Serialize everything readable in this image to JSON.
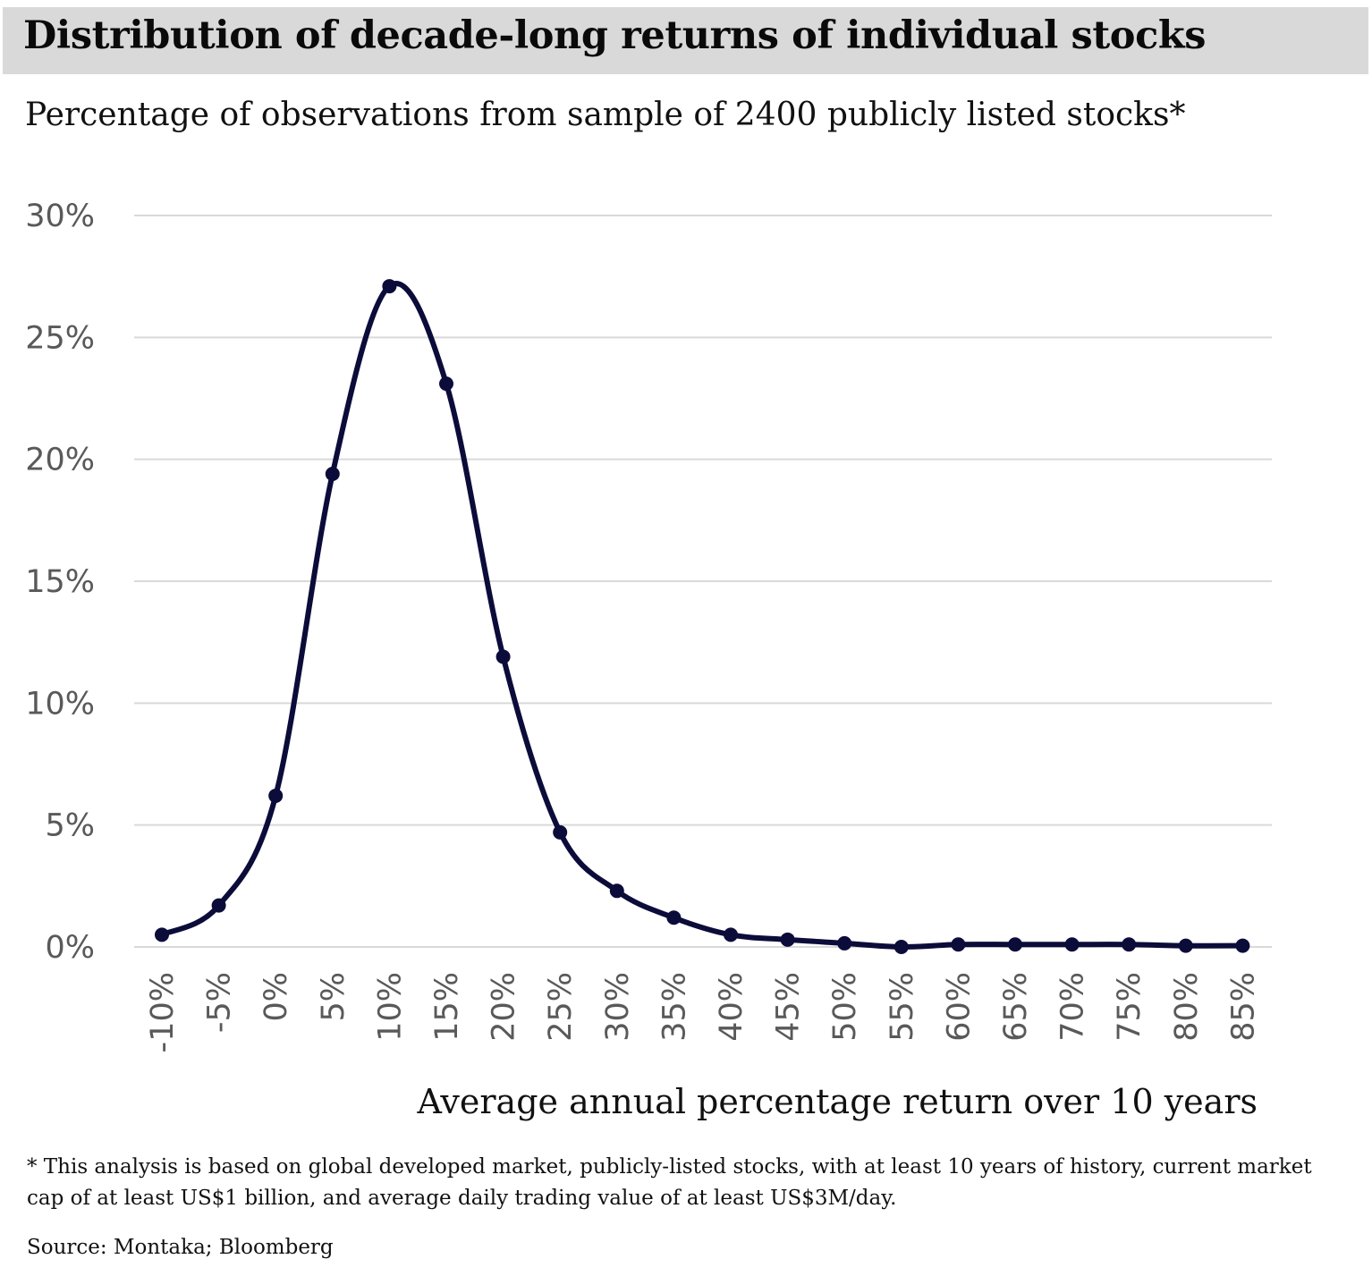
{
  "header": {
    "title": "Distribution of decade-long returns of individual stocks",
    "subtitle": "Percentage of observations from sample of 2400 publicly listed stocks*"
  },
  "footer": {
    "footnote": "* This analysis is based on global developed market, publicly-listed stocks, with at least 10 years of history, current market cap of at least US$1 billion, and average daily trading value of at least US$3M/day.",
    "source": "Source: Montaka; Bloomberg"
  },
  "colors": {
    "line": "#0c0c3a",
    "grid": "#d9d9d9",
    "title_background": "#d9d9d9",
    "tick_labels": "#595959"
  },
  "chart_data": {
    "type": "line",
    "title": "Distribution of decade-long returns of individual stocks",
    "subtitle": "Percentage of observations from sample of 2400 publicly listed stocks*",
    "xlabel": "Average annual percentage return over 10 years",
    "ylabel": "",
    "categories": [
      "-10%",
      "-5%",
      "0%",
      "5%",
      "10%",
      "15%",
      "20%",
      "25%",
      "30%",
      "35%",
      "40%",
      "45%",
      "50%",
      "55%",
      "60%",
      "65%",
      "70%",
      "75%",
      "80%",
      "85%"
    ],
    "series": [
      {
        "values": [
          0.5,
          1.7,
          6.2,
          19.4,
          27.1,
          23.1,
          11.9,
          4.7,
          2.3,
          1.2,
          0.5,
          0.3,
          0.15,
          0.0,
          0.1,
          0.1,
          0.1,
          0.1,
          0.05,
          0.05
        ]
      }
    ],
    "yticks": [
      "0%",
      "5%",
      "10%",
      "15%",
      "20%",
      "25%",
      "30%"
    ],
    "ylim": [
      0,
      30
    ],
    "smoothed": true,
    "markers": true,
    "grid": "horizontal",
    "legend": "none"
  }
}
